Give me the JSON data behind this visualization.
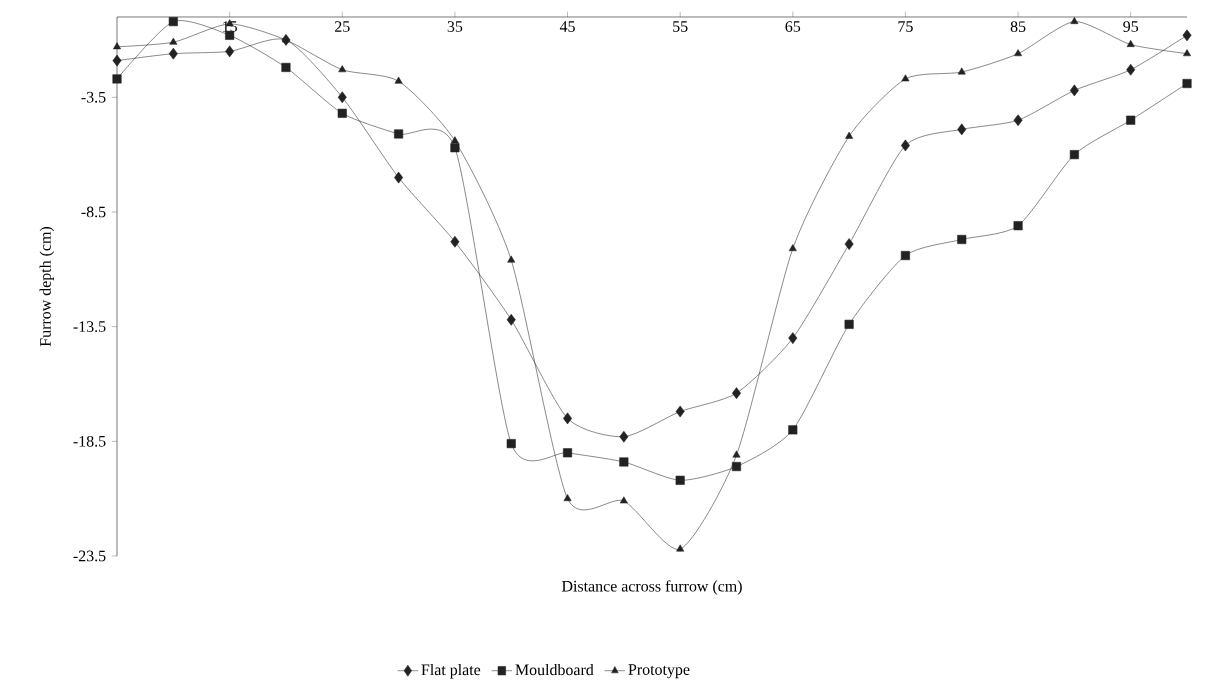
{
  "chart_data": {
    "type": "line",
    "xlabel": "Distance across furrow (cm)",
    "ylabel": "Furrow depth (cm)",
    "x": [
      5,
      10,
      15,
      20,
      25,
      30,
      35,
      40,
      45,
      50,
      55,
      60,
      65,
      70,
      75,
      80,
      85,
      90,
      95,
      100
    ],
    "xlim": [
      5,
      100
    ],
    "xticks": [
      15,
      25,
      35,
      45,
      55,
      65,
      75,
      85,
      95
    ],
    "ylim": [
      -23.5,
      0
    ],
    "yticks": [
      -3.5,
      -8.5,
      -13.5,
      -18.5,
      -23.5
    ],
    "grid": false,
    "legend": "bottom",
    "line_style": "solid",
    "series": [
      {
        "name": "Flat plate",
        "color": "#222222",
        "marker": "diamond",
        "values": [
          -1.9,
          -1.6,
          -1.5,
          -1.0,
          -3.5,
          -7.0,
          -9.8,
          -13.2,
          -17.5,
          -18.3,
          -17.2,
          -16.4,
          -14.0,
          -9.9,
          -5.6,
          -4.9,
          -4.5,
          -3.2,
          -2.3,
          -0.8
        ]
      },
      {
        "name": "Mouldboard",
        "color": "#222222",
        "marker": "square",
        "values": [
          -2.7,
          -0.2,
          -0.8,
          -2.2,
          -4.2,
          -5.1,
          -5.7,
          -18.6,
          -19.0,
          -19.4,
          -20.2,
          -19.6,
          -18.0,
          -13.4,
          -10.4,
          -9.7,
          -9.1,
          -6.0,
          -4.5,
          -2.9
        ]
      },
      {
        "name": "Prototype",
        "color": "#222222",
        "marker": "triangle",
        "values": [
          -1.3,
          -1.1,
          -0.3,
          -1.0,
          -2.3,
          -2.8,
          -5.4,
          -10.6,
          -21.0,
          -21.1,
          -23.2,
          -19.1,
          -10.1,
          -5.2,
          -2.7,
          -2.4,
          -1.6,
          -0.2,
          -1.2,
          -1.6
        ]
      }
    ]
  }
}
